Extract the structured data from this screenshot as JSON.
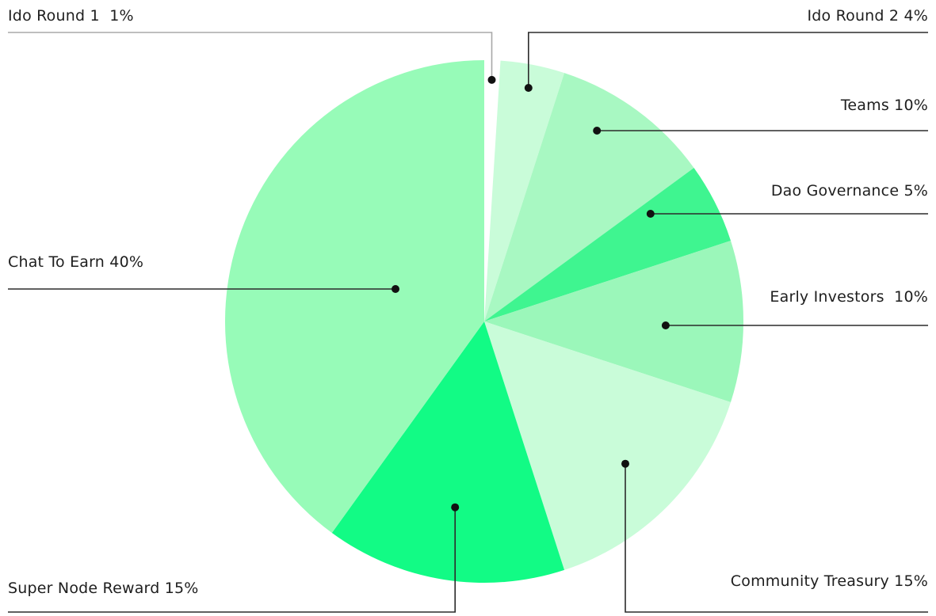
{
  "chart_data": {
    "type": "pie",
    "title": "",
    "slices": [
      {
        "label": "Ido Round 1  1%",
        "name": "Ido Round 1",
        "value": 1,
        "color": "#ffffff"
      },
      {
        "label": "Ido Round 2 4%",
        "name": "Ido Round 2",
        "value": 4,
        "color": "#c9fcd9"
      },
      {
        "label": "Teams 10%",
        "name": "Teams",
        "value": 10,
        "color": "#a8f8c2"
      },
      {
        "label": "Dao Governance 5%",
        "name": "Dao Governance",
        "value": 5,
        "color": "#3ff590"
      },
      {
        "label": "Early Investors  10%",
        "name": "Early Investors",
        "value": 10,
        "color": "#9bf7ba"
      },
      {
        "label": "Community Treasury 15%",
        "name": "Community Treasury",
        "value": 15,
        "color": "#c9fcd9"
      },
      {
        "label": "Super Node Reward 15%",
        "name": "Super Node Reward",
        "value": 15,
        "color": "#12fb85"
      },
      {
        "label": "Chat To Earn 40%",
        "name": "Chat To Earn",
        "value": 40,
        "color": "#97fbb8"
      }
    ],
    "legend": "leader-line labels around pie",
    "start_angle_deg": 0,
    "direction": "clockwise"
  }
}
